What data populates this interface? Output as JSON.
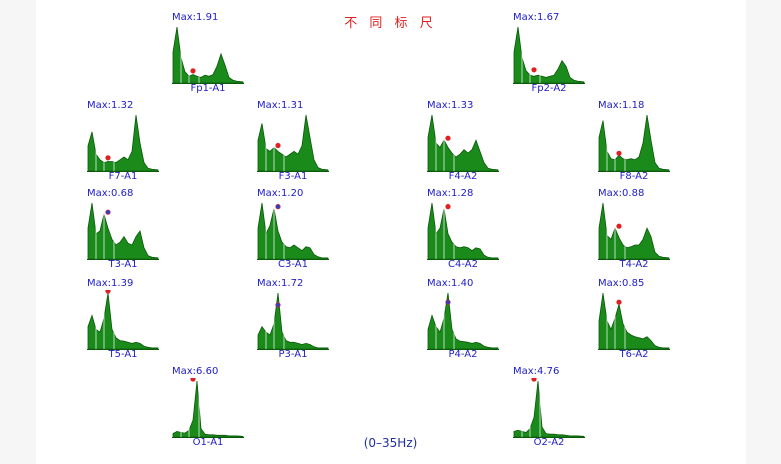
{
  "title": "不 同 标 尺",
  "range_label": "(0–35Hz)",
  "colors": {
    "fill": "#1a8a1a",
    "stroke": "#0a5a0a",
    "peak": "#e02020",
    "peak_alt": "#3040c0",
    "text": "#2020c8",
    "title": "#e02020"
  },
  "chart_data": [
    {
      "type": "area",
      "channel": "Fp1-A1",
      "max_label": "Max:1.91",
      "max": 1.91,
      "peak_marker_norm": 0.18,
      "x": [
        0,
        2,
        4,
        6,
        8,
        10,
        12,
        14,
        16,
        18,
        20,
        22,
        24,
        26,
        28,
        30,
        32,
        35
      ],
      "values": [
        0.55,
        1.0,
        0.45,
        0.2,
        0.12,
        0.15,
        0.12,
        0.1,
        0.14,
        0.12,
        0.15,
        0.3,
        0.52,
        0.32,
        0.1,
        0.05,
        0.03,
        0.02
      ]
    },
    {
      "type": "area",
      "channel": "Fp2-A2",
      "max_label": "Max:1.67",
      "max": 1.67,
      "peak_marker_norm": 0.2,
      "x": [
        0,
        2,
        4,
        6,
        8,
        10,
        12,
        14,
        16,
        18,
        20,
        22,
        24,
        26,
        28,
        30,
        32,
        35
      ],
      "values": [
        0.55,
        1.0,
        0.45,
        0.22,
        0.14,
        0.12,
        0.14,
        0.12,
        0.1,
        0.12,
        0.14,
        0.25,
        0.4,
        0.3,
        0.1,
        0.05,
        0.03,
        0.02
      ]
    },
    {
      "type": "area",
      "channel": "F7-A1",
      "max_label": "Max:1.32",
      "max": 1.32,
      "peak_marker_norm": 0.2,
      "x": [
        0,
        2,
        4,
        6,
        8,
        10,
        12,
        14,
        16,
        18,
        20,
        22,
        24,
        26,
        28,
        30,
        32,
        35
      ],
      "values": [
        0.45,
        0.7,
        0.3,
        0.2,
        0.15,
        0.17,
        0.17,
        0.15,
        0.2,
        0.25,
        0.2,
        0.35,
        1.0,
        0.5,
        0.15,
        0.05,
        0.03,
        0.02
      ]
    },
    {
      "type": "area",
      "channel": "F3-A1",
      "max_label": "Max:1.31",
      "max": 1.31,
      "peak_marker_norm": 0.42,
      "x": [
        0,
        2,
        4,
        6,
        8,
        10,
        12,
        14,
        16,
        18,
        20,
        22,
        24,
        26,
        28,
        30,
        32,
        35
      ],
      "values": [
        0.55,
        0.85,
        0.4,
        0.35,
        0.42,
        0.35,
        0.3,
        0.25,
        0.3,
        0.35,
        0.3,
        0.45,
        1.0,
        0.6,
        0.2,
        0.06,
        0.03,
        0.02
      ]
    },
    {
      "type": "area",
      "channel": "F4-A2",
      "max_label": "Max:1.33",
      "max": 1.33,
      "peak_marker_norm": 0.55,
      "x": [
        0,
        2,
        4,
        6,
        8,
        10,
        12,
        14,
        16,
        18,
        20,
        22,
        24,
        26,
        28,
        30,
        32,
        35
      ],
      "values": [
        0.6,
        1.0,
        0.5,
        0.42,
        0.55,
        0.42,
        0.32,
        0.25,
        0.3,
        0.38,
        0.32,
        0.38,
        0.55,
        0.35,
        0.15,
        0.05,
        0.03,
        0.02
      ]
    },
    {
      "type": "area",
      "channel": "F8-A2",
      "max_label": "Max:1.18",
      "max": 1.18,
      "peak_marker_norm": 0.28,
      "x": [
        0,
        2,
        4,
        6,
        8,
        10,
        12,
        14,
        16,
        18,
        20,
        22,
        24,
        26,
        28,
        30,
        32,
        35
      ],
      "values": [
        0.6,
        0.9,
        0.35,
        0.22,
        0.2,
        0.28,
        0.22,
        0.2,
        0.22,
        0.2,
        0.25,
        0.5,
        1.0,
        0.55,
        0.15,
        0.05,
        0.03,
        0.02
      ]
    },
    {
      "type": "area",
      "channel": "T3-A1",
      "max_label": "Max:0.68",
      "max": 0.68,
      "peak_marker_norm": 0.8,
      "peak_marker_alt": true,
      "x": [
        0,
        2,
        4,
        6,
        8,
        10,
        12,
        14,
        16,
        18,
        20,
        22,
        24,
        26,
        28,
        30,
        32,
        35
      ],
      "values": [
        0.55,
        1.0,
        0.45,
        0.5,
        0.8,
        0.55,
        0.35,
        0.25,
        0.3,
        0.4,
        0.28,
        0.25,
        0.4,
        0.5,
        0.2,
        0.06,
        0.03,
        0.02
      ]
    },
    {
      "type": "area",
      "channel": "C3-A1",
      "max_label": "Max:1.20",
      "max": 1.2,
      "peak_marker_norm": 0.9,
      "peak_marker_alt": true,
      "x": [
        0,
        2,
        4,
        6,
        8,
        10,
        12,
        14,
        16,
        18,
        20,
        22,
        24,
        26,
        28,
        30,
        32,
        35
      ],
      "values": [
        0.55,
        1.0,
        0.45,
        0.6,
        0.9,
        0.5,
        0.3,
        0.22,
        0.2,
        0.25,
        0.2,
        0.15,
        0.22,
        0.2,
        0.08,
        0.04,
        0.02,
        0.02
      ]
    },
    {
      "type": "area",
      "channel": "C4-A2",
      "max_label": "Max:1.28",
      "max": 1.28,
      "peak_marker_norm": 0.9,
      "x": [
        0,
        2,
        4,
        6,
        8,
        10,
        12,
        14,
        16,
        18,
        20,
        22,
        24,
        26,
        28,
        30,
        32,
        35
      ],
      "values": [
        0.55,
        1.0,
        0.45,
        0.55,
        0.9,
        0.45,
        0.3,
        0.22,
        0.2,
        0.22,
        0.2,
        0.15,
        0.2,
        0.18,
        0.07,
        0.03,
        0.02,
        0.02
      ]
    },
    {
      "type": "area",
      "channel": "T4-A2",
      "max_label": "Max:0.88",
      "max": 0.88,
      "peak_marker_norm": 0.55,
      "x": [
        0,
        2,
        4,
        6,
        8,
        10,
        12,
        14,
        16,
        18,
        20,
        22,
        24,
        26,
        28,
        30,
        32,
        35
      ],
      "values": [
        0.55,
        1.0,
        0.42,
        0.35,
        0.55,
        0.38,
        0.25,
        0.2,
        0.22,
        0.25,
        0.25,
        0.35,
        0.55,
        0.4,
        0.12,
        0.05,
        0.03,
        0.02
      ]
    },
    {
      "type": "area",
      "channel": "T5-A1",
      "max_label": "Max:1.39",
      "max": 1.39,
      "peak_marker_norm": 1.0,
      "x": [
        0,
        2,
        4,
        6,
        8,
        10,
        12,
        14,
        16,
        18,
        20,
        22,
        24,
        26,
        28,
        30,
        32,
        35
      ],
      "values": [
        0.4,
        0.6,
        0.35,
        0.3,
        0.55,
        1.0,
        0.35,
        0.2,
        0.15,
        0.14,
        0.12,
        0.1,
        0.12,
        0.1,
        0.05,
        0.03,
        0.02,
        0.02
      ]
    },
    {
      "type": "area",
      "channel": "P3-A1",
      "max_label": "Max:1.72",
      "max": 1.72,
      "peak_marker_norm": 0.75,
      "peak_marker_alt": true,
      "x": [
        0,
        2,
        4,
        6,
        8,
        10,
        12,
        14,
        16,
        18,
        20,
        22,
        24,
        26,
        28,
        30,
        32,
        35
      ],
      "values": [
        0.25,
        0.4,
        0.3,
        0.25,
        0.45,
        1.0,
        0.3,
        0.15,
        0.12,
        0.12,
        0.1,
        0.08,
        0.1,
        0.08,
        0.04,
        0.02,
        0.02,
        0.02
      ]
    },
    {
      "type": "area",
      "channel": "P4-A2",
      "max_label": "Max:1.40",
      "max": 1.4,
      "peak_marker_norm": 0.8,
      "peak_marker_alt": true,
      "x": [
        0,
        2,
        4,
        6,
        8,
        10,
        12,
        14,
        16,
        18,
        20,
        22,
        24,
        26,
        28,
        30,
        32,
        35
      ],
      "values": [
        0.35,
        0.6,
        0.4,
        0.3,
        0.55,
        1.0,
        0.35,
        0.18,
        0.14,
        0.13,
        0.12,
        0.1,
        0.12,
        0.1,
        0.05,
        0.03,
        0.02,
        0.02
      ]
    },
    {
      "type": "area",
      "channel": "T6-A2",
      "max_label": "Max:0.85",
      "max": 0.85,
      "peak_marker_norm": 0.8,
      "x": [
        0,
        2,
        4,
        6,
        8,
        10,
        12,
        14,
        16,
        18,
        20,
        22,
        24,
        26,
        28,
        30,
        32,
        35
      ],
      "values": [
        0.5,
        1.0,
        0.5,
        0.35,
        0.55,
        0.8,
        0.45,
        0.3,
        0.25,
        0.22,
        0.2,
        0.18,
        0.22,
        0.15,
        0.06,
        0.03,
        0.02,
        0.02
      ]
    },
    {
      "type": "area",
      "channel": "O1-A1",
      "max_label": "Max:6.60",
      "max": 6.6,
      "peak_marker_norm": 1.0,
      "x": [
        0,
        2,
        4,
        6,
        8,
        10,
        12,
        14,
        16,
        18,
        20,
        22,
        24,
        26,
        28,
        30,
        32,
        35
      ],
      "values": [
        0.06,
        0.1,
        0.08,
        0.07,
        0.12,
        0.3,
        1.0,
        0.15,
        0.05,
        0.04,
        0.04,
        0.03,
        0.03,
        0.03,
        0.02,
        0.02,
        0.02,
        0.01
      ]
    },
    {
      "type": "area",
      "channel": "O2-A2",
      "max_label": "Max:4.76",
      "max": 4.76,
      "peak_marker_norm": 1.0,
      "x": [
        0,
        2,
        4,
        6,
        8,
        10,
        12,
        14,
        16,
        18,
        20,
        22,
        24,
        26,
        28,
        30,
        32,
        35
      ],
      "values": [
        0.1,
        0.12,
        0.1,
        0.08,
        0.15,
        0.35,
        1.0,
        0.18,
        0.06,
        0.05,
        0.05,
        0.04,
        0.04,
        0.03,
        0.02,
        0.02,
        0.02,
        0.01
      ]
    }
  ]
}
